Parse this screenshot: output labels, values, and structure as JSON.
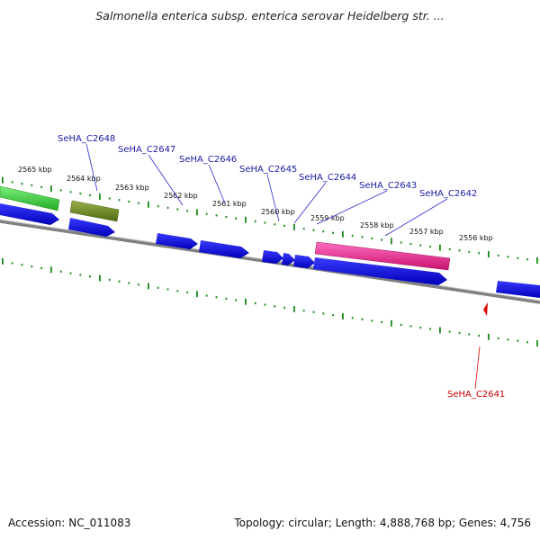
{
  "title": "Salmonella enterica subsp. enterica serovar Heidelberg str. ...",
  "footer": {
    "accession": "Accession: NC_011083",
    "summary": "Topology: circular; Length: 4,888,768 bp; Genes: 4,756"
  },
  "scale_labels": [
    "2565 kbp",
    "2564 kbp",
    "2563 kbp",
    "2562 kbp",
    "2561 kbp",
    "2560 kbp",
    "2559 kbp",
    "2558 kbp",
    "2557 kbp",
    "2556 kbp"
  ],
  "gene_labels": [
    {
      "text": "SeHA_C2648",
      "color": "#1a1aa6"
    },
    {
      "text": "SeHA_C2647",
      "color": "#1a1aa6"
    },
    {
      "text": "SeHA_C2646",
      "color": "#1a1aa6"
    },
    {
      "text": "SeHA_C2645",
      "color": "#1a1aa6"
    },
    {
      "text": "SeHA_C2644",
      "color": "#1a1aa6"
    },
    {
      "text": "SeHA_C2643",
      "color": "#1a1aa6"
    },
    {
      "text": "SeHA_C2642",
      "color": "#1a1aa6"
    },
    {
      "text": "SeHA_C2641",
      "color": "#cc0000"
    }
  ],
  "colors": {
    "cds": "#1010e0",
    "rrna": "#33cc33",
    "olive": "#6b8e23",
    "pink": "#ee2a90",
    "tick": "#1a8a1a",
    "backbone": "#888888",
    "trna": "#dd0000"
  }
}
